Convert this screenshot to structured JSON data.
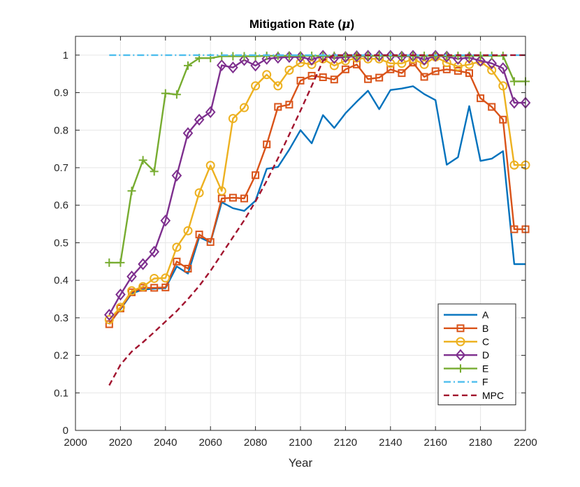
{
  "chart_data": {
    "type": "line",
    "title": "Mitigation Rate (μ)",
    "title_prefix": "Mitigation Rate (",
    "title_symbol": "μ",
    "title_suffix": ")",
    "xlabel": "Year",
    "ylabel": "",
    "xlim": [
      2000,
      2200
    ],
    "ylim": [
      0,
      1.05
    ],
    "xticks": [
      2000,
      2020,
      2040,
      2060,
      2080,
      2100,
      2120,
      2140,
      2160,
      2180,
      2200
    ],
    "yticks": [
      0,
      0.1,
      0.2,
      0.3,
      0.4,
      0.5,
      0.6,
      0.7,
      0.8,
      0.9,
      1
    ],
    "xtick_labels": [
      "2000",
      "2020",
      "2040",
      "2060",
      "2080",
      "2100",
      "2120",
      "2140",
      "2160",
      "2180",
      "2200"
    ],
    "ytick_labels": [
      "0",
      "0.1",
      "0.2",
      "0.3",
      "0.4",
      "0.5",
      "0.6",
      "0.7",
      "0.8",
      "0.9",
      "1"
    ],
    "grid": true,
    "legend_position": "bottom-right",
    "series": [
      {
        "name": "A",
        "color": "#0072BD",
        "marker": "none",
        "dash": "solid",
        "x": [
          2015,
          2020,
          2025,
          2030,
          2035,
          2040,
          2045,
          2050,
          2055,
          2060,
          2065,
          2070,
          2075,
          2080,
          2085,
          2090,
          2095,
          2100,
          2105,
          2110,
          2115,
          2120,
          2125,
          2130,
          2135,
          2140,
          2145,
          2150,
          2155,
          2160,
          2165,
          2170,
          2175,
          2180,
          2185,
          2190,
          2195,
          2200
        ],
        "y": [
          0.285,
          0.323,
          0.365,
          0.375,
          0.378,
          0.379,
          0.437,
          0.418,
          0.515,
          0.501,
          0.608,
          0.592,
          0.585,
          0.612,
          0.697,
          0.702,
          0.748,
          0.8,
          0.765,
          0.84,
          0.806,
          0.845,
          0.876,
          0.905,
          0.856,
          0.907,
          0.911,
          0.917,
          0.896,
          0.88,
          0.708,
          0.728,
          0.864,
          0.718,
          0.724,
          0.744,
          0.443,
          0.443
        ]
      },
      {
        "name": "B",
        "color": "#D95319",
        "marker": "square",
        "dash": "solid",
        "x": [
          2015,
          2020,
          2025,
          2030,
          2035,
          2040,
          2045,
          2050,
          2055,
          2060,
          2065,
          2070,
          2075,
          2080,
          2085,
          2090,
          2095,
          2100,
          2105,
          2110,
          2115,
          2120,
          2125,
          2130,
          2135,
          2140,
          2145,
          2150,
          2155,
          2160,
          2165,
          2170,
          2175,
          2180,
          2185,
          2190,
          2195,
          2200
        ],
        "y": [
          0.283,
          0.325,
          0.368,
          0.38,
          0.38,
          0.381,
          0.45,
          0.431,
          0.522,
          0.502,
          0.618,
          0.62,
          0.618,
          0.68,
          0.762,
          0.862,
          0.868,
          0.932,
          0.945,
          0.941,
          0.935,
          0.962,
          0.975,
          0.936,
          0.94,
          0.962,
          0.952,
          0.98,
          0.942,
          0.957,
          0.962,
          0.958,
          0.952,
          0.885,
          0.862,
          0.828,
          0.536,
          0.536
        ]
      },
      {
        "name": "C",
        "color": "#EDB120",
        "marker": "circle",
        "dash": "solid",
        "x": [
          2015,
          2020,
          2025,
          2030,
          2035,
          2040,
          2045,
          2050,
          2055,
          2060,
          2065,
          2070,
          2075,
          2080,
          2085,
          2090,
          2095,
          2100,
          2105,
          2110,
          2115,
          2120,
          2125,
          2130,
          2135,
          2140,
          2145,
          2150,
          2155,
          2160,
          2165,
          2170,
          2175,
          2180,
          2185,
          2190,
          2195,
          2200
        ],
        "y": [
          0.295,
          0.328,
          0.372,
          0.383,
          0.405,
          0.406,
          0.488,
          0.532,
          0.633,
          0.706,
          0.638,
          0.831,
          0.86,
          0.918,
          0.948,
          0.918,
          0.96,
          0.98,
          0.975,
          0.99,
          0.972,
          0.985,
          0.992,
          0.99,
          0.99,
          0.978,
          0.978,
          0.99,
          0.975,
          0.995,
          0.98,
          0.97,
          0.975,
          0.983,
          0.96,
          0.918,
          0.707,
          0.707
        ]
      },
      {
        "name": "D",
        "color": "#7E2F8E",
        "marker": "diamond",
        "dash": "solid",
        "x": [
          2015,
          2020,
          2025,
          2030,
          2035,
          2040,
          2045,
          2050,
          2055,
          2060,
          2065,
          2070,
          2075,
          2080,
          2085,
          2090,
          2095,
          2100,
          2105,
          2110,
          2115,
          2120,
          2125,
          2130,
          2135,
          2140,
          2145,
          2150,
          2155,
          2160,
          2165,
          2170,
          2175,
          2180,
          2185,
          2190,
          2195,
          2200
        ],
        "y": [
          0.308,
          0.362,
          0.41,
          0.443,
          0.476,
          0.559,
          0.679,
          0.792,
          0.828,
          0.848,
          0.973,
          0.967,
          0.987,
          0.972,
          0.99,
          0.993,
          0.995,
          0.995,
          0.988,
          0.998,
          0.992,
          0.995,
          0.997,
          0.998,
          0.998,
          0.998,
          0.996,
          0.998,
          0.988,
          0.998,
          0.996,
          0.99,
          0.993,
          0.985,
          0.978,
          0.965,
          0.873,
          0.873
        ]
      },
      {
        "name": "E",
        "color": "#77AC30",
        "marker": "plus",
        "dash": "solid",
        "x": [
          2015,
          2020,
          2025,
          2030,
          2035,
          2040,
          2045,
          2050,
          2055,
          2060,
          2065,
          2070,
          2075,
          2080,
          2085,
          2090,
          2095,
          2100,
          2105,
          2110,
          2115,
          2120,
          2125,
          2130,
          2135,
          2140,
          2145,
          2150,
          2155,
          2160,
          2165,
          2170,
          2175,
          2180,
          2185,
          2190,
          2195,
          2200
        ],
        "y": [
          0.447,
          0.447,
          0.638,
          0.72,
          0.69,
          0.898,
          0.895,
          0.972,
          0.992,
          0.992,
          0.997,
          0.997,
          0.997,
          0.997,
          0.998,
          0.998,
          0.998,
          0.998,
          0.998,
          0.998,
          0.998,
          0.998,
          0.998,
          0.998,
          0.998,
          0.998,
          0.998,
          0.998,
          0.998,
          0.998,
          0.998,
          0.998,
          0.998,
          0.998,
          0.998,
          0.998,
          0.93,
          0.93
        ]
      },
      {
        "name": "F",
        "color": "#4DBEEE",
        "marker": "none",
        "dash": "dashdot",
        "x": [
          2015,
          2200
        ],
        "y": [
          1.0,
          1.0
        ]
      },
      {
        "name": "MPC",
        "color": "#A2142F",
        "marker": "none",
        "dash": "dashed",
        "x": [
          2015,
          2020,
          2025,
          2030,
          2035,
          2040,
          2045,
          2050,
          2055,
          2060,
          2065,
          2070,
          2075,
          2080,
          2085,
          2090,
          2095,
          2100,
          2105,
          2110,
          2115,
          2200
        ],
        "y": [
          0.12,
          0.175,
          0.21,
          0.235,
          0.262,
          0.29,
          0.318,
          0.35,
          0.385,
          0.425,
          0.47,
          0.515,
          0.56,
          0.61,
          0.665,
          0.725,
          0.788,
          0.852,
          0.918,
          0.985,
          1.0,
          1.0
        ]
      }
    ]
  }
}
